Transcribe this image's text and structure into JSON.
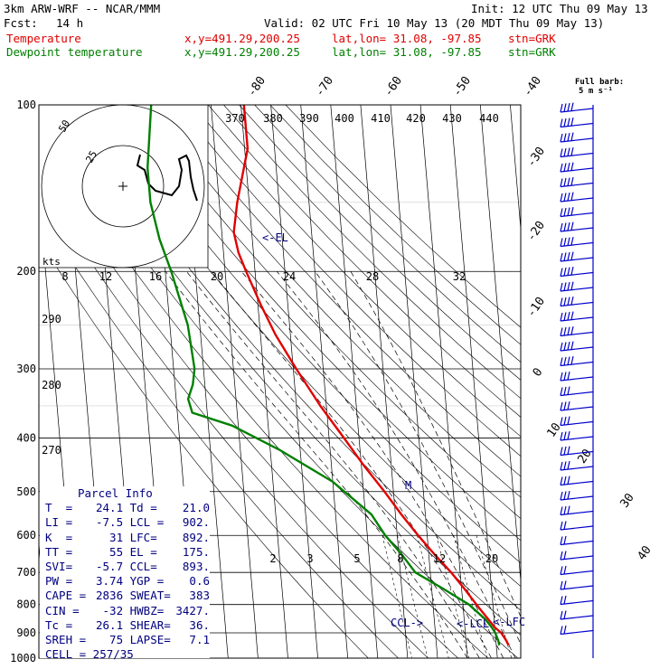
{
  "header": {
    "title": "3km ARW-WRF -- NCAR/MMM",
    "init": "Init: 12 UTC Thu 09 May 13",
    "fcst_label": "Fcst:",
    "fcst_value": "14 h",
    "valid": "Valid: 02 UTC Fri 10 May 13 (20 MDT Thu 09 May 13)",
    "temp_label": "Temperature",
    "dew_label": "Dewpoint temperature",
    "xy": "x,y=491.29,200.25",
    "latlon": "lat,lon= 31.08, -97.85",
    "stn": "stn=GRK",
    "barb_note_1": "Full barb:",
    "barb_note_2": "5 m s⁻¹"
  },
  "chart_data": {
    "type": "line",
    "y_axis": "pressure (hPa), log scale",
    "ylim": [
      1000,
      100
    ],
    "pressure_ticks": [
      100,
      200,
      300,
      400,
      500,
      600,
      700,
      800,
      900,
      1000
    ],
    "isotherm_labels": [
      "-80",
      "-70",
      "-60",
      "-50",
      "-40",
      "-30",
      "-20",
      "-10",
      "0",
      "10",
      "20",
      "30",
      "40"
    ],
    "theta_labels": [
      "370",
      "380",
      "390",
      "400",
      "410",
      "420",
      "430",
      "440"
    ],
    "theta_left_labels": [
      "290",
      "280",
      "270"
    ],
    "mixing_ratio_labels_upper": [
      "8",
      "12",
      "16",
      "20",
      "24",
      "28",
      "32"
    ],
    "mixing_ratio_labels_lower": [
      "2",
      "3",
      "5",
      "8",
      "12",
      "20"
    ],
    "hodo_labels": {
      "kts": "kts",
      "r25": "25",
      "r50": "50"
    },
    "markers": {
      "el": "<-EL",
      "ccl": "CCL->",
      "lcl": "<-LCL",
      "lfc": "<-LFC",
      "melt": "M"
    },
    "series": [
      {
        "name": "Temperature",
        "color": "#e00000",
        "points": [
          [
            100,
            -49
          ],
          [
            120,
            -49
          ],
          [
            150,
            -54
          ],
          [
            170,
            -56
          ],
          [
            185,
            -55
          ],
          [
            200,
            -53
          ],
          [
            230,
            -49
          ],
          [
            260,
            -45
          ],
          [
            300,
            -39
          ],
          [
            350,
            -32
          ],
          [
            400,
            -25
          ],
          [
            450,
            -19
          ],
          [
            500,
            -13
          ],
          [
            550,
            -8
          ],
          [
            600,
            -3
          ],
          [
            650,
            2
          ],
          [
            700,
            7
          ],
          [
            750,
            11
          ],
          [
            800,
            14.5
          ],
          [
            850,
            18
          ],
          [
            880,
            20
          ],
          [
            900,
            22
          ],
          [
            930,
            23.5
          ],
          [
            948,
            24.1
          ]
        ]
      },
      {
        "name": "Dewpoint temperature",
        "color": "#008000",
        "points": [
          [
            100,
            -80
          ],
          [
            130,
            -83
          ],
          [
            150,
            -83
          ],
          [
            175,
            -81
          ],
          [
            200,
            -78
          ],
          [
            250,
            -74
          ],
          [
            300,
            -73
          ],
          [
            320,
            -74
          ],
          [
            340,
            -76
          ],
          [
            360,
            -75
          ],
          [
            380,
            -62
          ],
          [
            420,
            -47
          ],
          [
            480,
            -30
          ],
          [
            550,
            -18
          ],
          [
            600,
            -14
          ],
          [
            650,
            -9
          ],
          [
            700,
            -5
          ],
          [
            750,
            4
          ],
          [
            800,
            12
          ],
          [
            850,
            17
          ],
          [
            880,
            19
          ],
          [
            900,
            20
          ],
          [
            930,
            20.8
          ],
          [
            948,
            21
          ]
        ]
      }
    ],
    "hodograph": [
      [
        155,
        171
      ],
      [
        152,
        183
      ],
      [
        160,
        188
      ],
      [
        164,
        203
      ],
      [
        172,
        211
      ],
      [
        190,
        216
      ],
      [
        198,
        206
      ],
      [
        201,
        188
      ],
      [
        198,
        176
      ],
      [
        206,
        172
      ],
      [
        209,
        178
      ],
      [
        211,
        196
      ],
      [
        214,
        210
      ],
      [
        218,
        222
      ]
    ]
  },
  "parcel": {
    "title": "Parcel Info",
    "rows": [
      [
        "T  =",
        "24.1",
        "Td =",
        "21.0"
      ],
      [
        "LI =",
        "-7.5",
        "LCL =",
        "902."
      ],
      [
        "K  =",
        "31",
        "LFC=",
        "892."
      ],
      [
        "TT =",
        "55",
        "EL =",
        "175."
      ],
      [
        "SVI=",
        "-5.7",
        "CCL=",
        "893."
      ],
      [
        "PW =",
        "3.74",
        "YGP =",
        "0.6"
      ],
      [
        "CAPE =",
        "2836",
        "SWEAT=",
        "383"
      ],
      [
        "CIN =",
        "-32",
        "HWBZ=",
        "3427."
      ],
      [
        "Tc =",
        "26.1",
        "SHEAR=",
        "36."
      ],
      [
        "SREH =",
        "75",
        "LAPSE=",
        "7.1"
      ]
    ],
    "cell": "CELL = 257/35"
  },
  "colors": {
    "temperature": "#e00000",
    "dewpoint": "#008000",
    "annotation": "#000080",
    "grid": "#000000"
  }
}
